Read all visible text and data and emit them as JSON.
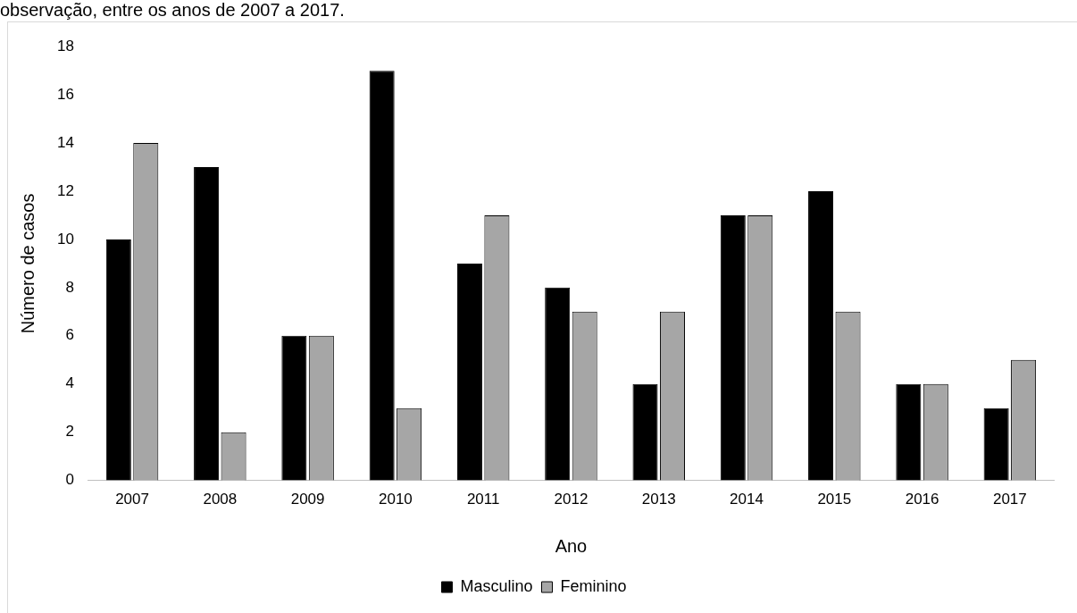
{
  "chart_data": {
    "type": "bar",
    "title": "observação, entre os anos de 2007 a 2017.",
    "xlabel": "Ano",
    "ylabel": "Número de casos",
    "categories": [
      "2007",
      "2008",
      "2009",
      "2010",
      "2011",
      "2012",
      "2013",
      "2014",
      "2015",
      "2016",
      "2017"
    ],
    "series": [
      {
        "name": "Masculino",
        "color": "#000000",
        "values": [
          10,
          13,
          6,
          17,
          9,
          8,
          4,
          11,
          12,
          4,
          3
        ]
      },
      {
        "name": "Feminino",
        "color": "#a6a6a6",
        "values": [
          14,
          2,
          6,
          3,
          11,
          7,
          7,
          11,
          7,
          4,
          5
        ]
      }
    ],
    "ylim": [
      0,
      18
    ],
    "yticks": [
      0,
      2,
      4,
      6,
      8,
      10,
      12,
      14,
      16,
      18
    ],
    "grid": false,
    "legend": "bottom"
  }
}
